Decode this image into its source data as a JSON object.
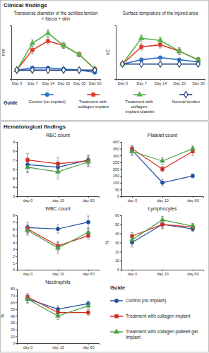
{
  "headers": [
    "Clinical findings",
    "Hematological findings"
  ],
  "legend_titles": [
    "Guide",
    "Guide"
  ],
  "chart_data": [
    {
      "type": "line",
      "title": [
        "Transverse diameter of the achilles tendon",
        "+ fascia + skin"
      ],
      "ylabel": "mm",
      "categories": [
        "Day 0",
        "Day 7",
        "Day 14",
        "Day 20",
        "Day 30",
        "Day 60"
      ],
      "ylim": [
        0,
        24
      ],
      "tick_labels": "x",
      "legend": "bottom",
      "series": [
        {
          "name": "Control (no implant)",
          "color": "#2e74c8",
          "marker": "circle",
          "values": [
            4,
            5,
            5,
            4.5,
            4,
            3
          ]
        },
        {
          "name": "Treatment with collagen implant",
          "color": "#e03a2a",
          "marker": "square",
          "values": [
            4,
            13,
            17,
            15,
            11,
            4.5
          ],
          "errors": [
            null,
            1.5,
            1.5,
            1.2,
            1,
            null
          ]
        },
        {
          "name": "Treatment with collagen implant-platelet",
          "color": "#55b44a",
          "marker": "triangle",
          "values": [
            4,
            16,
            20.5,
            15,
            11,
            4.5
          ],
          "errors": [
            null,
            1.5,
            1.5,
            1.2,
            1,
            null
          ]
        },
        {
          "name": "Normal tendon",
          "color": "#1f3b7a",
          "marker": "open-diamond",
          "values": [
            4,
            4,
            4,
            4,
            4,
            4
          ]
        }
      ]
    },
    {
      "type": "line",
      "title": "Surface temprature of the injured area",
      "ylabel": "oC",
      "categories": [
        "Day 0",
        "Day 7",
        "Day 14",
        "Day 20",
        "Day 30"
      ],
      "ylim": [
        15,
        40
      ],
      "tick_labels": "x",
      "series": [
        {
          "name": "Control (no implant)",
          "color": "#2e74c8",
          "marker": "circle",
          "values": [
            22,
            24,
            25,
            24,
            23
          ]
        },
        {
          "name": "Treatment with collagen implant",
          "color": "#e03a2a",
          "marker": "square",
          "values": [
            22,
            30,
            31,
            28,
            24
          ],
          "errors": [
            null,
            1.5,
            1.5,
            1.5,
            1
          ]
        },
        {
          "name": "Treatment with collagen implant-platelet",
          "color": "#55b44a",
          "marker": "triangle",
          "values": [
            22,
            34,
            33,
            28,
            24
          ],
          "errors": [
            null,
            1.5,
            1.5,
            1.5,
            1
          ]
        },
        {
          "name": "Normal tendon",
          "color": "#1f3b7a",
          "marker": "open-diamond",
          "values": [
            22,
            22,
            22,
            22,
            22
          ]
        }
      ]
    },
    {
      "type": "line",
      "title": "RBC count",
      "categories": [
        "day 0",
        "day 10",
        "day 60"
      ],
      "ylim": [
        3,
        9
      ],
      "yticks": [
        3,
        4,
        5,
        6,
        7,
        8,
        9
      ],
      "legend": "bottom-right",
      "series": [
        {
          "name": "Control (no implant)",
          "color": "#1f4e9a",
          "marker": "circle",
          "values": [
            6.5,
            6.2,
            7.0
          ],
          "errors": [
            0.8,
            0.6,
            0.5
          ]
        },
        {
          "name": "Treatment with collagen implant",
          "color": "#d7261e",
          "marker": "square",
          "values": [
            7.0,
            6.6,
            6.9
          ],
          "errors": [
            0.7,
            0.7,
            0.6
          ]
        },
        {
          "name": "Treatment with collagen platelet gel implant",
          "color": "#4aa046",
          "marker": "triangle",
          "values": [
            6.2,
            5.7,
            6.8
          ],
          "errors": [
            0.6,
            0.8,
            0.5
          ]
        }
      ]
    },
    {
      "type": "line",
      "title": "Platelet count",
      "categories": [
        "day 0",
        "day 10",
        "day 60"
      ],
      "ylim": [
        0,
        400
      ],
      "yticks": [
        0,
        50,
        100,
        150,
        200,
        250,
        300,
        350,
        400
      ],
      "series": [
        {
          "name": "Control (no implant)",
          "color": "#1f4e9a",
          "marker": "circle",
          "values": [
            340,
            100,
            150
          ],
          "errors": [
            30,
            25,
            15
          ]
        },
        {
          "name": "Treatment with collagen implant",
          "color": "#d7261e",
          "marker": "square",
          "values": [
            350,
            200,
            330
          ],
          "errors": [
            25,
            20,
            30
          ]
        },
        {
          "name": "Treatment with collagen platelet gel implant",
          "color": "#4aa046",
          "marker": "triangle",
          "values": [
            330,
            260,
            350
          ],
          "errors": [
            30,
            25,
            20
          ]
        }
      ]
    },
    {
      "type": "line",
      "title": "WBC count",
      "categories": [
        "day 0",
        "day 10",
        "day 60"
      ],
      "ylim": [
        0,
        8
      ],
      "yticks": [
        0,
        1,
        2,
        3,
        4,
        5,
        6,
        7,
        8
      ],
      "series": [
        {
          "name": "Control (no implant)",
          "color": "#1f4e9a",
          "marker": "circle",
          "values": [
            6.2,
            6.0,
            7.0
          ],
          "errors": [
            0.8,
            0.6,
            0.9
          ]
        },
        {
          "name": "Treatment with collagen implant",
          "color": "#d7261e",
          "marker": "square",
          "values": [
            6.0,
            3.5,
            5.0
          ],
          "errors": [
            0.6,
            0.7,
            0.5
          ]
        },
        {
          "name": "Treatment with collagen platelet gel implant",
          "color": "#4aa046",
          "marker": "triangle",
          "values": [
            5.8,
            3.2,
            5.5
          ],
          "errors": [
            0.7,
            0.8,
            0.6
          ]
        }
      ]
    },
    {
      "type": "line",
      "title": "Lymphocytes",
      "ylabel": "%",
      "categories": [
        "day 0",
        "day 10",
        "day 60"
      ],
      "ylim": [
        0,
        60
      ],
      "yticks": [
        0,
        10,
        20,
        30,
        40,
        50,
        60
      ],
      "series": [
        {
          "name": "Control (no implant)",
          "color": "#1f4e9a",
          "marker": "circle",
          "values": [
            30,
            50,
            45
          ],
          "errors": [
            5,
            4,
            3
          ]
        },
        {
          "name": "Treatment with collagen implant",
          "color": "#d7261e",
          "marker": "square",
          "values": [
            37,
            50,
            47
          ],
          "errors": [
            4,
            5,
            3
          ]
        },
        {
          "name": "Treatment with collagen platelet gel implant",
          "color": "#4aa046",
          "marker": "triangle",
          "values": [
            33,
            55,
            48
          ],
          "errors": [
            4,
            4,
            3
          ]
        }
      ]
    },
    {
      "type": "line",
      "title": "Neutrophils",
      "ylabel": "%",
      "categories": [
        "day 0",
        "day 10",
        "day 60"
      ],
      "ylim": [
        0,
        80
      ],
      "yticks": [
        0,
        10,
        20,
        30,
        40,
        50,
        60,
        70,
        80
      ],
      "series": [
        {
          "name": "Control (no implant)",
          "color": "#1f4e9a",
          "marker": "circle",
          "values": [
            65,
            50,
            58
          ],
          "errors": [
            6,
            5,
            4
          ]
        },
        {
          "name": "Treatment with collagen implant",
          "color": "#d7261e",
          "marker": "square",
          "values": [
            68,
            45,
            45
          ],
          "errors": [
            5,
            5,
            4
          ]
        },
        {
          "name": "Treatment with collagen platelet gel implant",
          "color": "#4aa046",
          "marker": "triangle",
          "values": [
            65,
            40,
            55
          ],
          "errors": [
            5,
            5,
            4
          ]
        }
      ]
    }
  ]
}
